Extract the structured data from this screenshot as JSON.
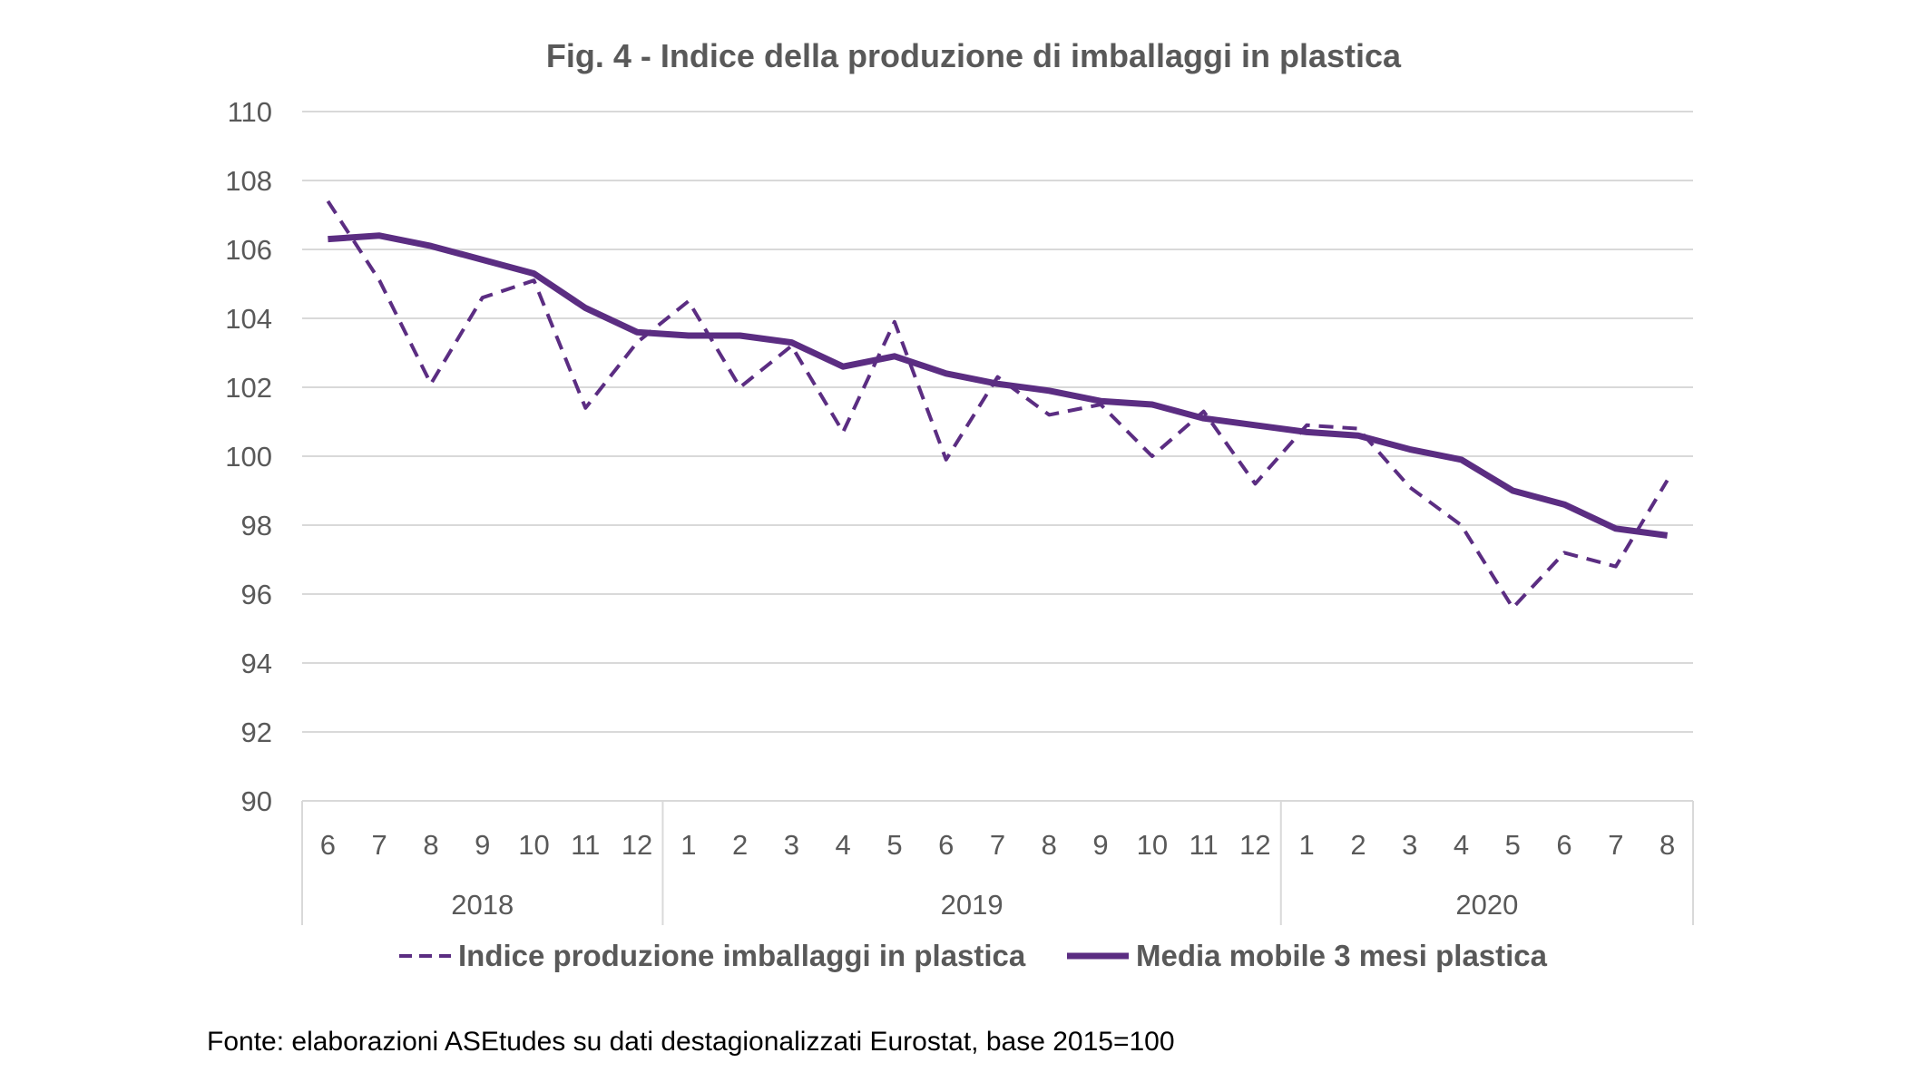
{
  "chart_data": {
    "type": "line",
    "title": "Fig. 4  - Indice della produzione di imballaggi in plastica",
    "xlabel": "",
    "ylabel": "",
    "ylim": [
      90,
      110
    ],
    "yticks": [
      110,
      108,
      106,
      104,
      102,
      100,
      98,
      96,
      94,
      92,
      90
    ],
    "grid": true,
    "legend_position": "bottom",
    "categories": [
      "6",
      "7",
      "8",
      "9",
      "10",
      "11",
      "12",
      "1",
      "2",
      "3",
      "4",
      "5",
      "6",
      "7",
      "8",
      "9",
      "10",
      "11",
      "12",
      "1",
      "2",
      "3",
      "4",
      "5",
      "6",
      "7",
      "8"
    ],
    "year_groups": [
      {
        "label": "2018",
        "count": 7
      },
      {
        "label": "2019",
        "count": 12
      },
      {
        "label": "2020",
        "count": 8
      }
    ],
    "series": [
      {
        "name": "Indice produzione imballaggi in plastica",
        "style": "dashed",
        "color": "#5b2d82",
        "values": [
          107.4,
          105.1,
          102.1,
          104.6,
          105.1,
          101.4,
          103.3,
          104.5,
          102.0,
          103.2,
          100.7,
          103.9,
          99.9,
          102.3,
          101.2,
          101.5,
          100.0,
          101.3,
          99.2,
          100.9,
          100.8,
          99.1,
          98.0,
          95.6,
          97.2,
          96.8,
          99.3
        ]
      },
      {
        "name": "Media mobile 3 mesi plastica",
        "style": "solid",
        "color": "#5b2d82",
        "values": [
          106.3,
          106.4,
          106.1,
          105.7,
          105.3,
          104.3,
          103.6,
          103.5,
          103.5,
          103.3,
          102.6,
          102.9,
          102.4,
          102.1,
          101.9,
          101.6,
          101.5,
          101.1,
          100.9,
          100.7,
          100.6,
          100.2,
          99.9,
          99.0,
          98.6,
          97.9,
          97.7
        ]
      }
    ]
  },
  "source_note": "Fonte: elaborazioni ASEtudes su dati destagionalizzati Eurostat, base 2015=100"
}
